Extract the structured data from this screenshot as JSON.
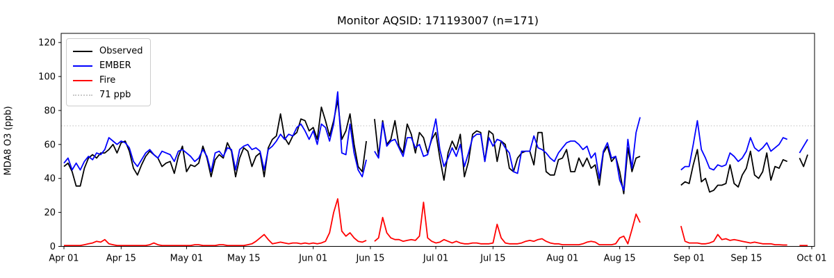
{
  "chart_data": {
    "type": "line",
    "title": "Monitor AQSID: 171193007 (n=171)",
    "xlabel": "",
    "ylabel": "MDA8 O3 (ppb)",
    "monitor_aqsid": "171193007",
    "n_points": 171,
    "x_start_date": "Apr 01",
    "x_end_date": "Oct 01",
    "x_tick_labels": [
      "Apr 01",
      "Apr 15",
      "May 01",
      "May 15",
      "Jun 01",
      "Jun 15",
      "Jul 01",
      "Jul 15",
      "Aug 01",
      "Aug 15",
      "Sep 01",
      "Sep 15",
      "Oct 01"
    ],
    "x_tick_days": [
      0,
      14,
      30,
      44,
      61,
      75,
      91,
      105,
      122,
      136,
      153,
      167,
      183
    ],
    "y_ticks": [
      0,
      20,
      40,
      60,
      80,
      100,
      120
    ],
    "ylim": [
      0,
      125.4
    ],
    "grid": false,
    "threshold": {
      "value": 71,
      "label": "71 ppb",
      "color": "#c9c9c9",
      "style": "dotted"
    },
    "notes_gaps": [
      "Jun 15",
      "Aug 21-29",
      "Sep 26-27"
    ],
    "series": [
      {
        "name": "Observed",
        "color": "#000000",
        "values": [
          47,
          49,
          44,
          35.5,
          35.5,
          46,
          52,
          54,
          52,
          55,
          55,
          57,
          60,
          55,
          61,
          62,
          56,
          46,
          42,
          48,
          53,
          56,
          54,
          52,
          47,
          49,
          50,
          43,
          53,
          59,
          44,
          48,
          47,
          49,
          59,
          52,
          41,
          51,
          54,
          52,
          61,
          56,
          41,
          52,
          58,
          56,
          47,
          53,
          55,
          41,
          58,
          63,
          65,
          78,
          64,
          60,
          65,
          67,
          75,
          74,
          68,
          70,
          63,
          82,
          74,
          65,
          74,
          86,
          63,
          68,
          78,
          60,
          47,
          44,
          62,
          null,
          75,
          53,
          74,
          60,
          63,
          74,
          59,
          55,
          72,
          66,
          55,
          67,
          64,
          55,
          63,
          67,
          52,
          39,
          55,
          62,
          57,
          66,
          41,
          50,
          66,
          68,
          67,
          50,
          68,
          66,
          50,
          62,
          60,
          46,
          44,
          52,
          55,
          56,
          56,
          48,
          67,
          67,
          44,
          42,
          42,
          51,
          52,
          57,
          44,
          44,
          52,
          47,
          52,
          46,
          48,
          36,
          55,
          59,
          50,
          53,
          44,
          31,
          58,
          44,
          52,
          53,
          null,
          null,
          null,
          null,
          null,
          null,
          null,
          null,
          null,
          36,
          38,
          37,
          48,
          57,
          38,
          40,
          32,
          33,
          36,
          36,
          37,
          48,
          37,
          35,
          42,
          46,
          56,
          42,
          40,
          44,
          55,
          39,
          47,
          46,
          51,
          50,
          null,
          null,
          52,
          47,
          54
        ]
      },
      {
        "name": "EMBER",
        "color": "#0000ff",
        "values": [
          49,
          52,
          45,
          49,
          45,
          50,
          53,
          51,
          55,
          54,
          57,
          64,
          62,
          60,
          62,
          61,
          58,
          50,
          47,
          51,
          55,
          57,
          54,
          52,
          56,
          55,
          54,
          50,
          56,
          57,
          55,
          53,
          50,
          52,
          57,
          53,
          44,
          55,
          56,
          53,
          58,
          57,
          45,
          57,
          59,
          60,
          57,
          58,
          56,
          45,
          57,
          59,
          62,
          66,
          63,
          66,
          65,
          70,
          72,
          68,
          63,
          68,
          60,
          72,
          70,
          62,
          72,
          91,
          55,
          54,
          72,
          55,
          45,
          41,
          51,
          null,
          56,
          52,
          73,
          59,
          62,
          63,
          58,
          53,
          64,
          64,
          58,
          60,
          53,
          54,
          64,
          75,
          57,
          47,
          52,
          58,
          53,
          60,
          47,
          55,
          64,
          66,
          66,
          50,
          64,
          59,
          63,
          62,
          58,
          55,
          44,
          43,
          56,
          56,
          56,
          65,
          58,
          57,
          55,
          52,
          50,
          55,
          58,
          61,
          62,
          62,
          60,
          57,
          59,
          52,
          55,
          40,
          56,
          61,
          52,
          53,
          39,
          33,
          63,
          46,
          67,
          76,
          null,
          null,
          null,
          null,
          null,
          null,
          null,
          null,
          null,
          45,
          47,
          47,
          60,
          74,
          57,
          52,
          46,
          45,
          48,
          47,
          48,
          55,
          53,
          50,
          52,
          56,
          64,
          58,
          56,
          58,
          61,
          56,
          58,
          60,
          64,
          63,
          null,
          null,
          55,
          59,
          63
        ]
      },
      {
        "name": "Fire",
        "color": "#ff0000",
        "values": [
          0.5,
          0.5,
          0.5,
          0.5,
          0.5,
          1,
          1.5,
          2,
          3,
          2.5,
          4,
          1.5,
          1,
          0.5,
          0.5,
          0.5,
          0.5,
          0.5,
          0.5,
          0.5,
          0.5,
          1,
          2,
          1,
          0.5,
          0.5,
          0.5,
          0.5,
          0.5,
          0.5,
          0.5,
          0.5,
          1,
          1,
          0.5,
          0.5,
          0.5,
          0.5,
          1,
          1,
          0.5,
          0.5,
          0.5,
          0.5,
          0.5,
          1,
          1.5,
          3,
          5,
          7,
          4,
          1.5,
          2,
          2.5,
          2,
          1.5,
          2,
          2,
          1.5,
          2,
          1.5,
          2,
          1.5,
          2,
          3,
          8,
          20,
          28,
          9,
          6,
          8,
          5,
          3,
          2.5,
          3.5,
          null,
          3,
          5,
          17,
          8,
          5,
          4,
          4,
          3,
          3.5,
          4,
          3.5,
          6,
          26,
          5,
          3,
          2,
          2.5,
          4,
          3,
          2,
          3,
          2,
          1.5,
          1.5,
          2,
          2,
          1.5,
          1.5,
          1.5,
          2,
          13,
          5,
          2,
          1.5,
          1.5,
          1.5,
          2,
          3,
          3.5,
          3,
          4,
          4.5,
          3,
          2,
          1.5,
          1.5,
          1,
          1,
          1,
          1,
          1,
          1.5,
          2.5,
          3,
          2.5,
          1,
          1,
          1,
          1,
          1.5,
          5,
          6,
          1.5,
          10,
          19,
          14,
          null,
          null,
          null,
          null,
          null,
          null,
          null,
          null,
          null,
          12,
          3,
          2,
          2,
          2,
          1.5,
          1.5,
          2,
          3,
          7,
          4,
          4.5,
          3.5,
          4,
          3.5,
          3,
          2.5,
          2,
          2.5,
          2,
          1.5,
          1.5,
          1.5,
          1,
          1,
          0.8,
          0.8,
          null,
          null,
          0.5,
          0.5,
          0.5
        ]
      }
    ]
  },
  "legend": {
    "items": [
      {
        "label": "Observed",
        "color": "#000000",
        "style": "solid"
      },
      {
        "label": "EMBER",
        "color": "#0000ff",
        "style": "solid"
      },
      {
        "label": "Fire",
        "color": "#ff0000",
        "style": "solid"
      },
      {
        "label": "71 ppb",
        "color": "#c9c9c9",
        "style": "dotted"
      }
    ]
  },
  "colors": {
    "spine": "#000000",
    "background": "#ffffff",
    "tick_text": "#000000"
  }
}
